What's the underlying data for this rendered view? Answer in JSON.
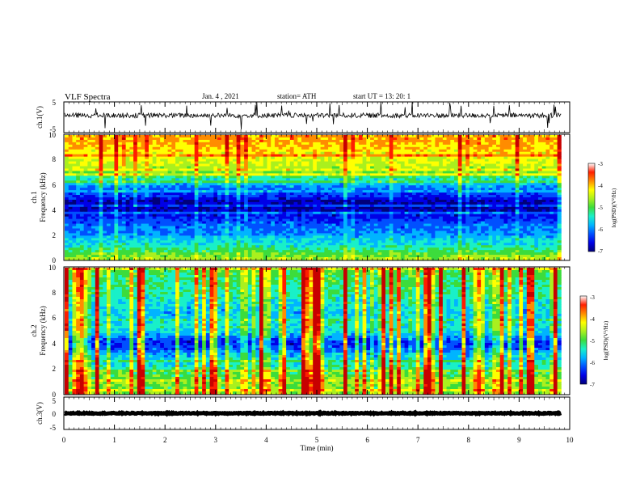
{
  "header": {
    "title": "VLF Spectra",
    "date": "Jan. 4 , 2021",
    "station": "station= ATH",
    "start": "start UT = 13: 20: 1"
  },
  "colors": {
    "colormap": [
      "#00007a",
      "#0000e6",
      "#0050ff",
      "#00b4ff",
      "#19f0c8",
      "#3cdc3c",
      "#aaf01e",
      "#ffff00",
      "#ff8c00",
      "#ff1e00",
      "#c80000"
    ]
  },
  "chart_data": [
    {
      "type": "line",
      "name": "ch1-waveform",
      "ylabel": "ch.1(V)",
      "ylim": [
        -5,
        5
      ],
      "ytick_labels": [
        "5",
        "-5"
      ],
      "xlim": [
        0,
        10
      ],
      "grid": false,
      "baseline": 0.6
    },
    {
      "type": "heatmap",
      "name": "ch1-spectrogram",
      "ylabel": "ch.1\nFrequency (kHz)",
      "ylim": [
        0,
        10
      ],
      "ytick_labels": [
        "0",
        "2",
        "4",
        "6",
        "8",
        "10"
      ],
      "xlim": [
        0,
        9.83
      ],
      "colorbar": {
        "label": "log(PSD)(V²/Hz)",
        "range": [
          -7,
          -3
        ],
        "tick_labels": [
          "-3",
          "-4",
          "-5",
          "-6",
          "-7"
        ]
      },
      "spectrum_profile": {
        "freq_khz": [
          0,
          0.4,
          0.8,
          1.2,
          1.6,
          2.0,
          2.4,
          2.8,
          3.2,
          3.6,
          4.0,
          4.4,
          4.8,
          5.2,
          5.6,
          6.0,
          6.4,
          6.8,
          7.2,
          7.6,
          8.0,
          8.4,
          8.8,
          9.2,
          9.6,
          10.0
        ],
        "log_psd": [
          -4.6,
          -4.9,
          -5.2,
          -5.5,
          -5.6,
          -5.9,
          -6.0,
          -6.1,
          -6.3,
          -6.5,
          -6.7,
          -6.8,
          -6.6,
          -6.3,
          -6.1,
          -5.8,
          -5.5,
          -5.1,
          -4.8,
          -4.6,
          -4.5,
          -4.4,
          -4.3,
          -4.2,
          -4.1,
          -4.1
        ]
      }
    },
    {
      "type": "heatmap",
      "name": "ch2-spectrogram",
      "ylabel": "ch.2\nFrequency (kHz)",
      "ylim": [
        0,
        10
      ],
      "ytick_labels": [
        "0",
        "2",
        "4",
        "6",
        "8",
        "10"
      ],
      "xlim": [
        0,
        9.83
      ],
      "colorbar": {
        "label": "log(PSD)(V²/Hz)",
        "range": [
          -7,
          -3
        ],
        "tick_labels": [
          "-3",
          "-4",
          "-5",
          "-6",
          "-7"
        ]
      },
      "spectrum_profile": {
        "freq_khz": [
          0,
          0.4,
          0.8,
          1.2,
          1.6,
          2.0,
          2.4,
          2.8,
          3.2,
          3.6,
          4.0,
          4.4,
          4.8,
          5.2,
          5.6,
          6.0,
          6.4,
          6.8,
          7.2,
          7.6,
          8.0,
          8.4,
          8.8,
          9.2,
          9.6,
          10.0
        ],
        "log_psd": [
          -4.9,
          -5.1,
          -4.9,
          -5.0,
          -5.2,
          -5.4,
          -5.6,
          -5.7,
          -5.9,
          -6.3,
          -6.5,
          -6.2,
          -5.8,
          -5.6,
          -5.6,
          -5.7,
          -5.8,
          -5.7,
          -5.6,
          -5.5,
          -5.4,
          -5.4,
          -5.3,
          -5.3,
          -5.2,
          -5.2
        ]
      }
    },
    {
      "type": "line",
      "name": "ch3-waveform",
      "ylabel": "ch.3(V)",
      "ylim": [
        -5,
        5
      ],
      "ytick_labels": [
        "5",
        "0",
        "-5"
      ],
      "xlim": [
        0,
        10
      ],
      "grid": false,
      "baseline": 0.0
    }
  ],
  "xaxis": {
    "label": "Time (min)",
    "range": [
      0,
      10
    ],
    "tick_labels": [
      "0",
      "1",
      "2",
      "3",
      "4",
      "5",
      "6",
      "7",
      "8",
      "9",
      "10"
    ]
  }
}
